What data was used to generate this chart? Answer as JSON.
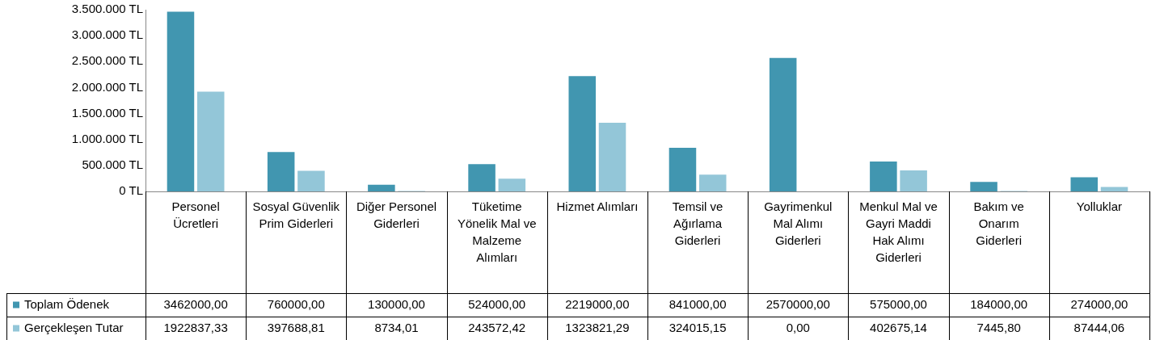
{
  "chart_data": {
    "type": "bar",
    "categories": [
      "Personel Ücretleri",
      "Sosyal Güvenlik Prim Giderleri",
      "Diğer Personel Giderleri",
      "Tüketime Yönelik Mal ve Malzeme Alımları",
      "Hizmet Alımları",
      "Temsil ve Ağırlama Giderleri",
      "Gayrimenkul Mal Alımı Giderleri",
      "Menkul Mal ve Gayri Maddi Hak Alımı Giderleri",
      "Bakım ve Onarım Giderleri",
      "Yolluklar"
    ],
    "series": [
      {
        "name": "Toplam Ödenek",
        "color": "#4196b0",
        "values": [
          3462000,
          760000,
          130000,
          524000,
          2219000,
          841000,
          2570000,
          575000,
          184000,
          274000
        ],
        "value_labels": [
          "3462000,00",
          "760000,00",
          "130000,00",
          "524000,00",
          "2219000,00",
          "841000,00",
          "2570000,00",
          "575000,00",
          "184000,00",
          "274000,00"
        ]
      },
      {
        "name": "Gerçekleşen Tutar",
        "color": "#93c6d8",
        "values": [
          1922837.33,
          397688.81,
          8734.01,
          243572.42,
          1323821.29,
          324015.15,
          0,
          402675.14,
          7445.8,
          87444.06
        ],
        "value_labels": [
          "1922837,33",
          "397688,81",
          "8734,01",
          "243572,42",
          "1323821,29",
          "324015,15",
          "0,00",
          "402675,14",
          "7445,80",
          "87444,06"
        ]
      }
    ],
    "ylim": [
      0,
      3500000
    ],
    "yticks": [
      {
        "value": 0,
        "label": "0 TL"
      },
      {
        "value": 500000,
        "label": "500.000 TL"
      },
      {
        "value": 1000000,
        "label": "1.000.000 TL"
      },
      {
        "value": 1500000,
        "label": "1.500.000 TL"
      },
      {
        "value": 2000000,
        "label": "2.000.000 TL"
      },
      {
        "value": 2500000,
        "label": "2.500.000 TL"
      },
      {
        "value": 3000000,
        "label": "3.000.000 TL"
      },
      {
        "value": 3500000,
        "label": "3.500.000 TL"
      }
    ],
    "grid": false,
    "legend": "bottom left"
  }
}
